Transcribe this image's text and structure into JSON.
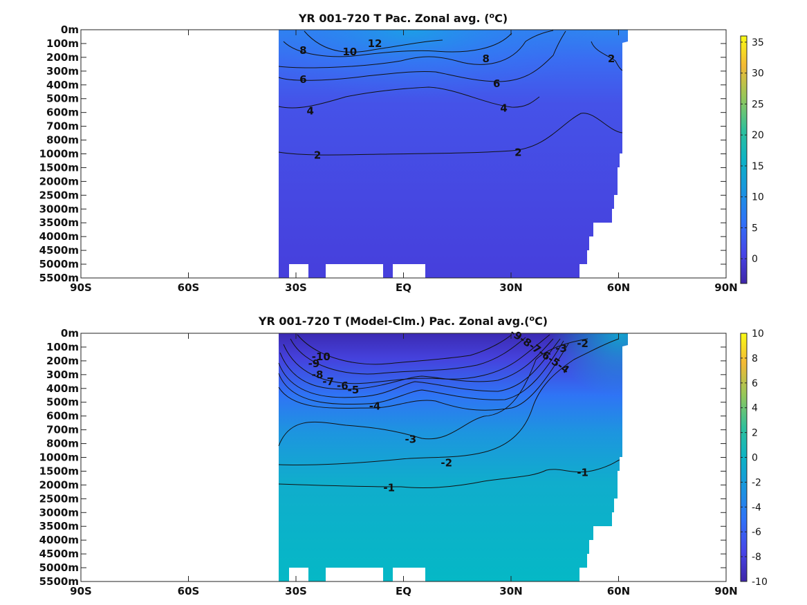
{
  "chart_data": [
    {
      "type": "heatmap",
      "title": "YR 001-720 T Pac. Zonal avg. (",
      "title_sup": "o",
      "title_end": "C)",
      "xticks": [
        "90S",
        "60S",
        "30S",
        "EQ",
        "30N",
        "60N",
        "90N"
      ],
      "xtick_values": [
        -90,
        -60,
        -30,
        0,
        30,
        60,
        90
      ],
      "yticks": [
        "0m",
        "100m",
        "200m",
        "300m",
        "400m",
        "500m",
        "600m",
        "700m",
        "800m",
        "1000m",
        "1500m",
        "2000m",
        "2500m",
        "3000m",
        "3500m",
        "4000m",
        "4500m",
        "5000m",
        "5500m"
      ],
      "xlim": [
        -90,
        90
      ],
      "colorbar": {
        "ticks": [
          "35",
          "30",
          "25",
          "20",
          "15",
          "10",
          "5",
          "0"
        ],
        "tick_values": [
          35,
          30,
          25,
          20,
          15,
          10,
          5,
          0
        ],
        "range": [
          -4,
          36
        ],
        "colormap": "parula"
      },
      "contour_labels": [
        {
          "text": "12",
          "x": -8,
          "depth_index": 1.0
        },
        {
          "text": "10",
          "x": -15,
          "depth_index": 1.6
        },
        {
          "text": "8",
          "x": -28,
          "depth_index": 1.5
        },
        {
          "text": "8",
          "x": 23,
          "depth_index": 2.1
        },
        {
          "text": "2",
          "x": 58,
          "depth_index": 2.1
        },
        {
          "text": "6",
          "x": -28,
          "depth_index": 3.6
        },
        {
          "text": "6",
          "x": 26,
          "depth_index": 3.9
        },
        {
          "text": "4",
          "x": -26,
          "depth_index": 5.9
        },
        {
          "text": "4",
          "x": 28,
          "depth_index": 5.7
        },
        {
          "text": "2",
          "x": -24,
          "depth_index": 9.1
        },
        {
          "text": "2",
          "x": 32,
          "depth_index": 8.9
        }
      ]
    },
    {
      "type": "heatmap",
      "title": "YR 001-720 T (Model-Clm.) Pac. Zonal avg.(",
      "title_sup": "o",
      "title_end": "C)",
      "xticks": [
        "90S",
        "60S",
        "30S",
        "EQ",
        "30N",
        "60N",
        "90N"
      ],
      "xtick_values": [
        -90,
        -60,
        -30,
        0,
        30,
        60,
        90
      ],
      "yticks": [
        "0m",
        "100m",
        "200m",
        "300m",
        "400m",
        "500m",
        "600m",
        "700m",
        "800m",
        "1000m",
        "1500m",
        "2000m",
        "2500m",
        "3000m",
        "3500m",
        "4000m",
        "4500m",
        "5000m",
        "5500m"
      ],
      "xlim": [
        -90,
        90
      ],
      "colorbar": {
        "ticks": [
          "10",
          "8",
          "6",
          "4",
          "2",
          "0",
          "-2",
          "-4",
          "-6",
          "-8",
          "-10"
        ],
        "tick_values": [
          10,
          8,
          6,
          4,
          2,
          0,
          -2,
          -4,
          -6,
          -8,
          -10
        ],
        "range": [
          -10,
          10
        ],
        "colormap": "parula"
      },
      "contour_labels": [
        {
          "text": "-10",
          "x": -23,
          "depth_index": 1.7
        },
        {
          "text": "-9",
          "x": -25,
          "depth_index": 2.2
        },
        {
          "text": "-8",
          "x": -24,
          "depth_index": 3.0
        },
        {
          "text": "-7",
          "x": -21,
          "depth_index": 3.5
        },
        {
          "text": "-6",
          "x": -17,
          "depth_index": 3.8
        },
        {
          "text": "-5",
          "x": -14,
          "depth_index": 4.1
        },
        {
          "text": "-4",
          "x": -8,
          "depth_index": 5.3
        },
        {
          "text": "-9-8-7-6-5-4",
          "x": 38,
          "depth_index": 1.3
        },
        {
          "text": "-3",
          "x": 44,
          "depth_index": 1.1
        },
        {
          "text": "-2",
          "x": 50,
          "depth_index": 0.75
        },
        {
          "text": "-3",
          "x": 2,
          "depth_index": 7.7
        },
        {
          "text": "-2",
          "x": 12,
          "depth_index": 9.4
        },
        {
          "text": "-1",
          "x": 50,
          "depth_index": 10.1
        },
        {
          "text": "-1",
          "x": -4,
          "depth_index": 11.2
        }
      ]
    }
  ]
}
